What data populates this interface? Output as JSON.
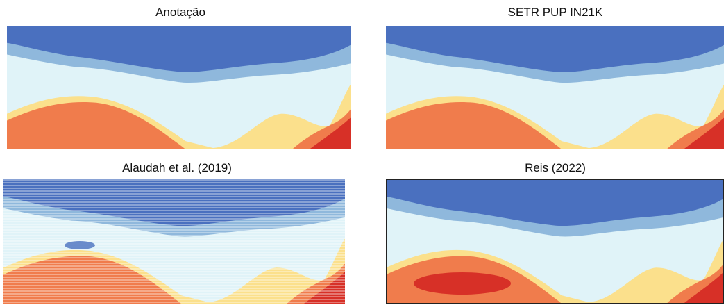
{
  "panels": [
    {
      "title": "Anotação"
    },
    {
      "title": "SETR PUP IN21K"
    },
    {
      "title": "Alaudah et al. (2019)"
    },
    {
      "title": "Reis (2022)"
    }
  ]
}
